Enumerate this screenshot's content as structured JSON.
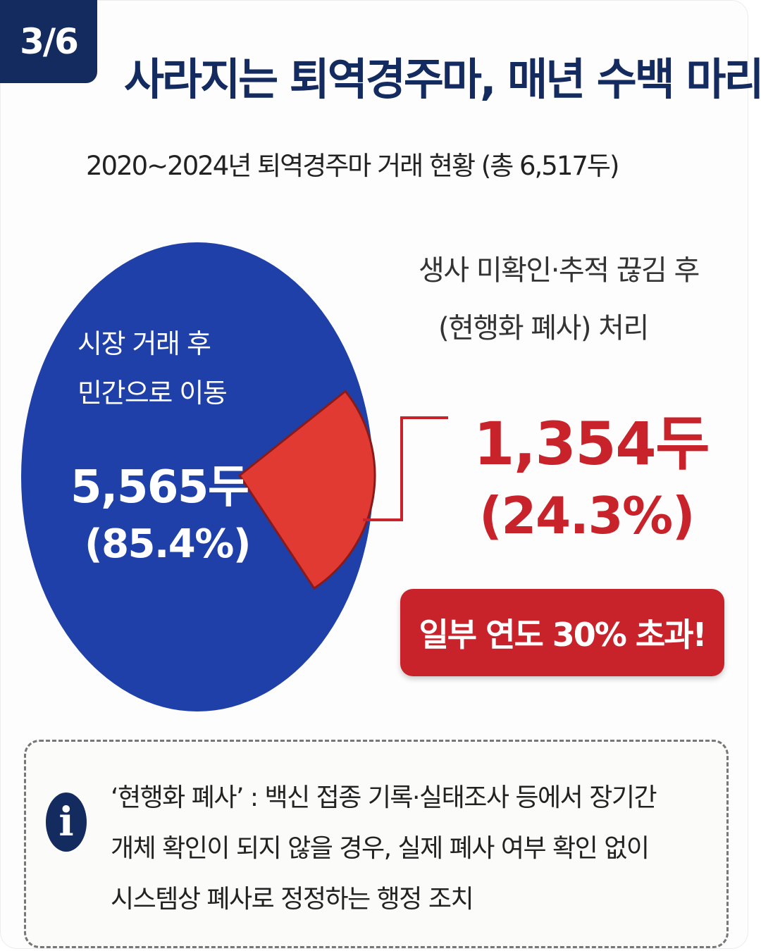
{
  "page_indicator": "3/6",
  "title": "사라지는 퇴역경주마, 매년 수백 마리",
  "subtitle": "2020~2024년 퇴역경주마 거래 현황 (총 6,517두)",
  "chart_data": {
    "type": "pie",
    "title": "2020~2024년 퇴역경주마 거래 현황 (총 6,517두)",
    "slices": [
      {
        "label_lines": [
          "시장 거래 후",
          "민간으로 이동"
        ],
        "value": 5565,
        "value_label": "5,565두",
        "percent_label": "(85.4%)",
        "color": "#1e40a8"
      },
      {
        "label_lines": [
          "생사 미확인·추적 끊김 후",
          "(현행화 폐사) 처리"
        ],
        "value": 1354,
        "value_label": "1,354두",
        "percent_label": "(24.3%)",
        "color": "#e03a32"
      }
    ]
  },
  "callout": "일부 연도 30% 초과!",
  "note": {
    "icon": "info-icon",
    "lines": [
      "‘현행화 폐사’ : 백신 접종 기록·실태조사 등에서 장기간",
      "개체 확인이 되지 않을 경우, 실제 폐사 여부 확인 없이",
      "시스템상 폐사로 정정하는 행정 조치"
    ]
  },
  "colors": {
    "navy": "#142b5f",
    "red": "#c8232b",
    "blue": "#1e40a8"
  }
}
